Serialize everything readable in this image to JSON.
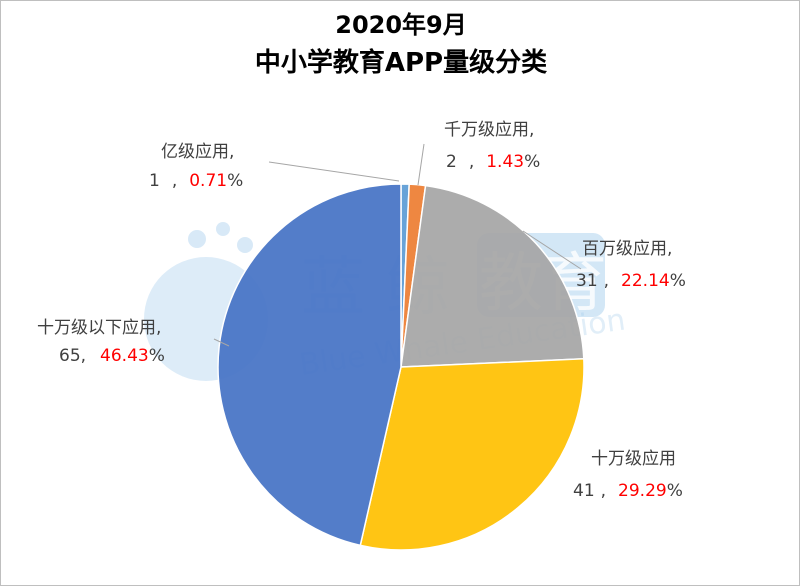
{
  "chart_data": {
    "type": "pie",
    "title": "2020年9月",
    "subtitle": "中小学教育APP量级分类",
    "slices": [
      {
        "label": "亿级应用,",
        "value": 1,
        "percent": "0.71",
        "color": "#5b9bd5"
      },
      {
        "label": "千万级应用,",
        "value": 2,
        "percent": "1.43",
        "color": "#ed7d31"
      },
      {
        "label": "百万级应用,",
        "value": 31,
        "percent": "22.14",
        "color": "#a5a5a5"
      },
      {
        "label": "十万级应用",
        "value": 41,
        "percent": "29.29",
        "color": "#ffc000"
      },
      {
        "label": "十万级以下应用,",
        "value": 65,
        "percent": "46.43",
        "color": "#4472c4"
      }
    ]
  },
  "watermark": {
    "brand_1": "蓝",
    "brand_2": "鲸",
    "brand_3": "教育",
    "brand_en": "Blue Whale Education"
  }
}
